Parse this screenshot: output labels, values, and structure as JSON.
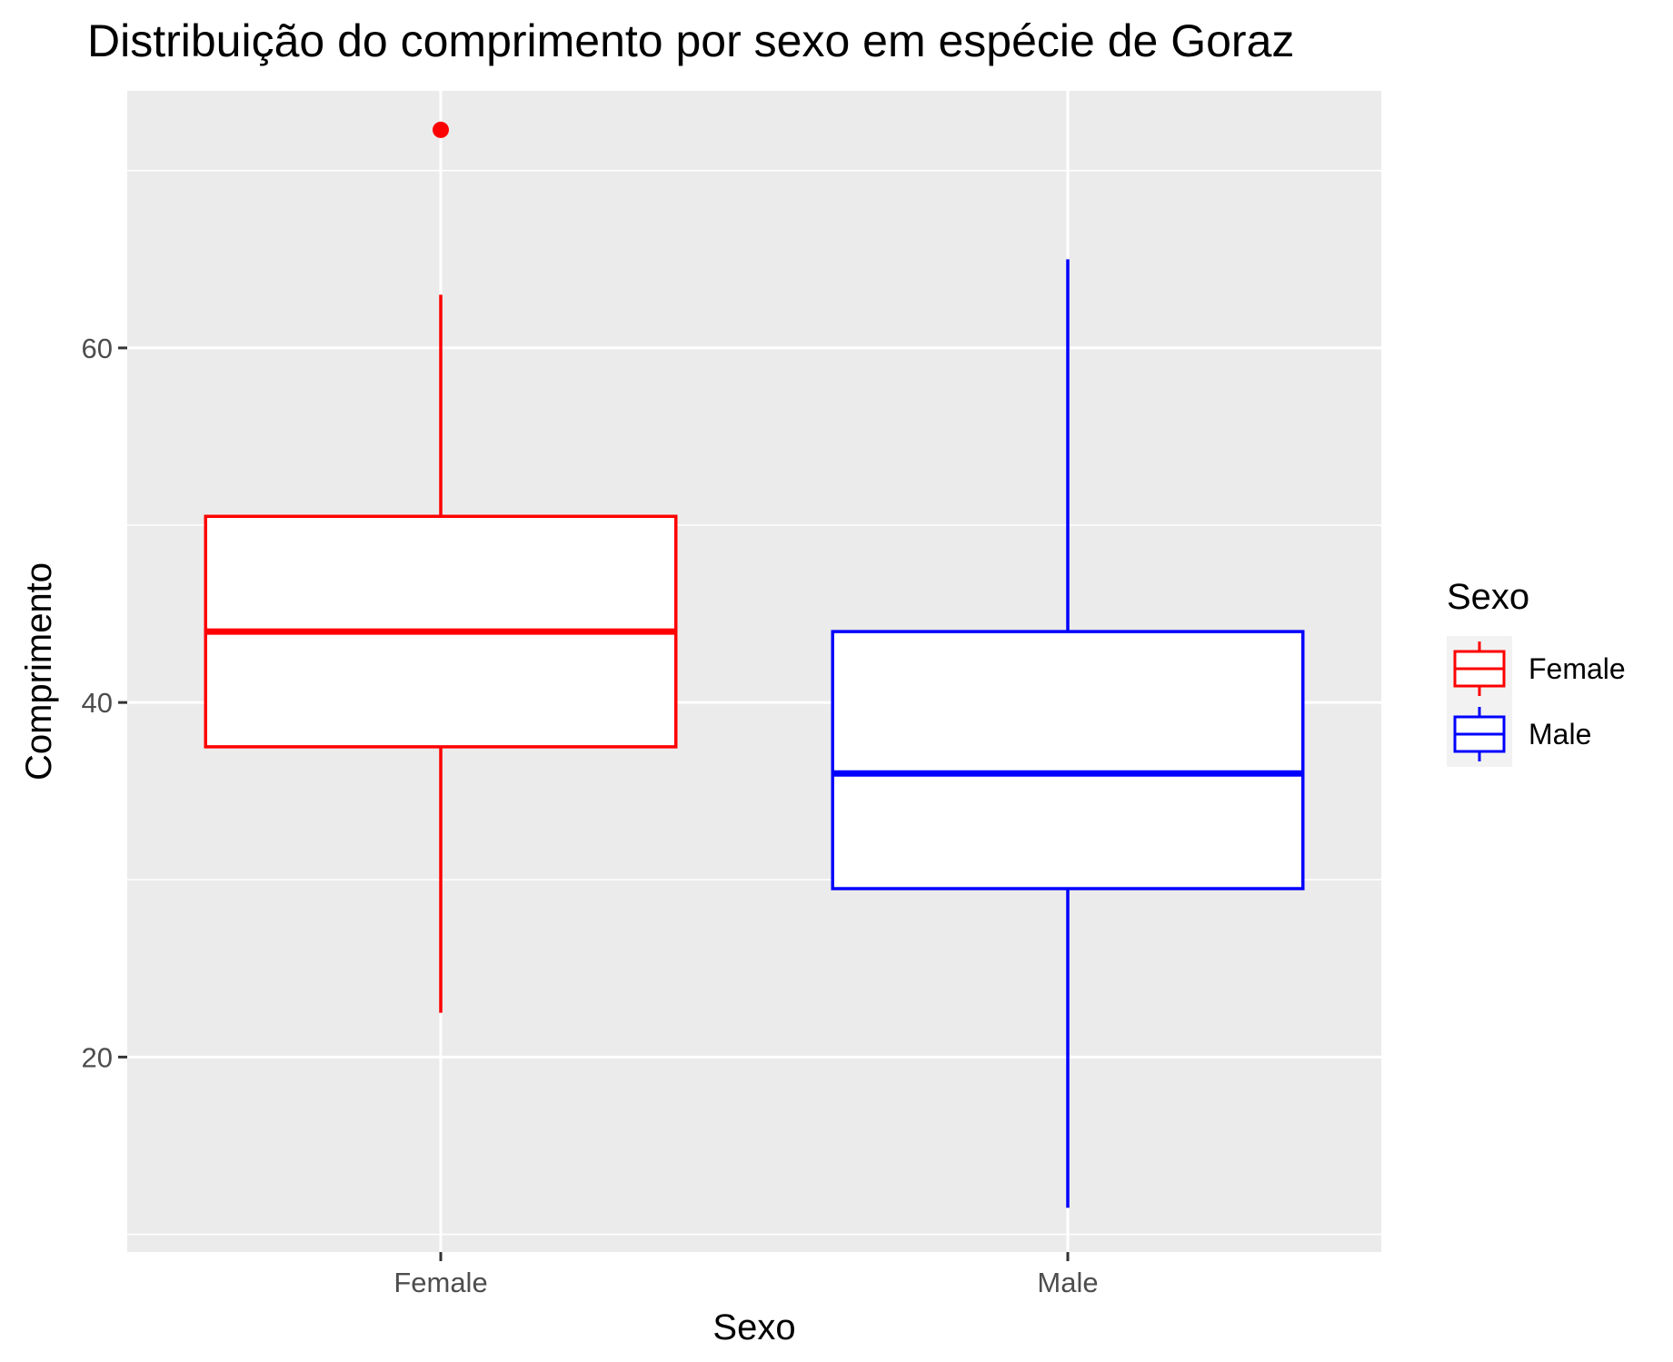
{
  "chart_data": {
    "type": "boxplot",
    "title": "Distribuição do comprimento por sexo em espécie de Goraz",
    "xlabel": "Sexo",
    "ylabel": "Comprimento",
    "categories": [
      "Female",
      "Male"
    ],
    "ylim": [
      9,
      74.5
    ],
    "y_ticks": [
      20,
      40,
      60
    ],
    "grid": true,
    "background_color": "#EBEBEB",
    "series": [
      {
        "name": "Female",
        "color": "#FF0000",
        "whisker_low": 22.5,
        "q1": 37.5,
        "median": 44,
        "q3": 50.5,
        "whisker_high": 63,
        "outliers": [
          72.3
        ]
      },
      {
        "name": "Male",
        "color": "#0000FF",
        "whisker_low": 11.5,
        "q1": 29.5,
        "median": 36,
        "q3": 44,
        "whisker_high": 65,
        "outliers": []
      }
    ],
    "legend": {
      "title": "Sexo",
      "position": "right",
      "entries": [
        "Female",
        "Male"
      ]
    }
  }
}
